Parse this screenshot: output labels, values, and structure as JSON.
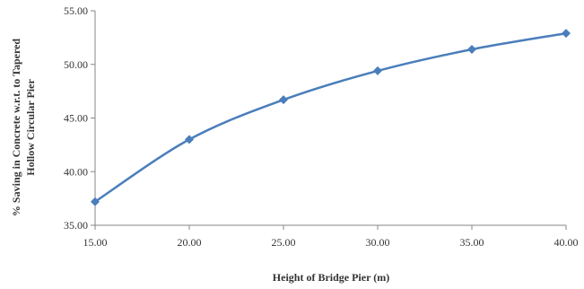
{
  "chart_data": {
    "type": "line",
    "title": "",
    "xlabel": "Height of Bridge Pier (m)",
    "ylabel_line1": "% Saving in Concrete w.r.t. to Tapered",
    "ylabel_line2": "Hollow Circular Pier",
    "x": [
      15,
      20,
      25,
      30,
      35,
      40
    ],
    "series": [
      {
        "values": [
          37.2,
          43.0,
          46.7,
          49.4,
          51.4,
          52.9
        ]
      }
    ],
    "xlim": [
      15,
      40
    ],
    "ylim": [
      35,
      55
    ],
    "xticks": [
      "15.00",
      "20.00",
      "25.00",
      "30.00",
      "35.00",
      "40.00"
    ],
    "yticks": [
      "35.00",
      "40.00",
      "45.00",
      "50.00",
      "55.00"
    ],
    "xtick_values": [
      15,
      20,
      25,
      30,
      35,
      40
    ],
    "ytick_values": [
      35,
      40,
      45,
      50,
      55
    ],
    "grid": false,
    "legend": "none",
    "line_color": "#4a7ebb",
    "marker": "diamond"
  }
}
